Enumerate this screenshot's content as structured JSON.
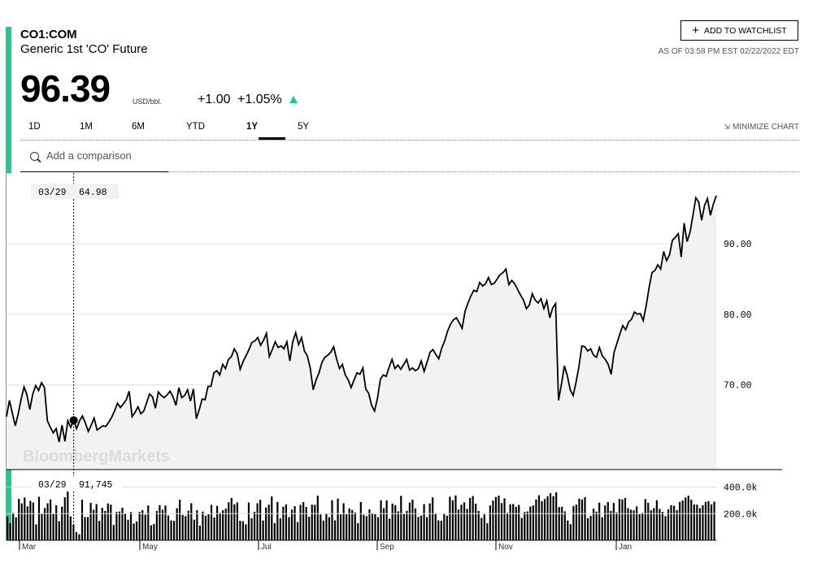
{
  "security": {
    "ticker": "CO1:COM",
    "name": "Generic 1st 'CO' Future",
    "price": "96.39",
    "unit": "USD/bbl.",
    "change": "+1.00",
    "change_pct": "+1.05%",
    "as_of": "AS OF 03:58 PM EST 02/22/2022 EDT"
  },
  "actions": {
    "watchlist_label": "ADD TO WATCHLIST",
    "minimize_label": "MINIMIZE CHART"
  },
  "tabs": [
    {
      "label": "1D"
    },
    {
      "label": "1M"
    },
    {
      "label": "6M"
    },
    {
      "label": "YTD"
    },
    {
      "label": "1Y",
      "active": true
    },
    {
      "label": "5Y"
    }
  ],
  "comparison": {
    "placeholder": "Add a comparison"
  },
  "watermark": "BloombergMarkets",
  "colors": {
    "accent": "#1ecb8c",
    "line": "#000000",
    "area": "#f2f2f2",
    "volume": "#000000"
  },
  "chart_data": [
    {
      "type": "line",
      "title": "",
      "ylabel": "",
      "ylim": [
        58,
        100
      ],
      "yticks": [
        70,
        80,
        90
      ],
      "ytick_labels": [
        "70.00",
        "80.00",
        "90.00"
      ],
      "grid": true,
      "crosshair": {
        "date": "03/29",
        "value": "64.98"
      },
      "x_labels": [
        "Mar",
        "May",
        "Jul",
        "Sep",
        "Nov",
        "Jan"
      ],
      "series": [
        {
          "values": [
            65.5,
            67.8,
            66.0,
            64.2,
            65.9,
            68.0,
            69.7,
            68.6,
            66.5,
            68.7,
            69.9,
            69.2,
            70.3,
            69.6,
            64.9,
            64.0,
            63.2,
            63.8,
            61.9,
            64.3,
            62.0,
            64.9,
            64.0,
            65.0,
            63.8,
            64.9,
            65.6,
            64.6,
            63.4,
            64.3,
            65.3,
            63.6,
            63.9,
            64.2,
            64.1,
            64.7,
            65.4,
            66.3,
            67.4,
            66.8,
            67.3,
            67.9,
            69.1,
            65.5,
            66.1,
            66.9,
            65.9,
            66.3,
            67.5,
            68.7,
            68.3,
            66.7,
            69.0,
            68.5,
            68.2,
            68.6,
            69.1,
            68.3,
            67.1,
            69.6,
            68.2,
            68.5,
            69.3,
            67.7,
            69.4,
            65.2,
            66.5,
            68.0,
            67.9,
            69.8,
            69.8,
            71.7,
            72.0,
            71.4,
            72.9,
            72.3,
            73.6,
            74.0,
            75.1,
            74.4,
            72.2,
            73.3,
            74.1,
            75.0,
            76.0,
            76.2,
            76.7,
            75.6,
            76.3,
            77.3,
            74.0,
            75.0,
            76.1,
            75.3,
            75.5,
            75.1,
            76.1,
            73.4,
            76.1,
            77.4,
            75.7,
            76.7,
            74.8,
            74.1,
            72.4,
            69.3,
            70.7,
            71.7,
            73.2,
            73.9,
            74.2,
            74.6,
            75.4,
            73.7,
            72.3,
            72.9,
            71.4,
            70.7,
            69.6,
            70.7,
            71.7,
            71.5,
            72.4,
            69.4,
            68.8,
            67.1,
            66.3,
            68.1,
            70.8,
            71.4,
            71.2,
            72.5,
            73.6,
            72.3,
            72.8,
            72.2,
            72.9,
            73.6,
            72.1,
            72.4,
            72.0,
            72.3,
            73.4,
            71.9,
            73.2,
            74.6,
            75.0,
            74.3,
            73.7,
            75.2,
            76.2,
            77.6,
            78.6,
            79.2,
            79.5,
            78.8,
            78.0,
            80.4,
            81.6,
            82.6,
            83.4,
            83.2,
            84.5,
            84.0,
            84.3,
            85.2,
            84.2,
            84.4,
            85.0,
            85.6,
            85.9,
            86.4,
            84.2,
            84.8,
            84.3,
            83.5,
            82.7,
            82.0,
            80.8,
            81.3,
            82.9,
            82.0,
            81.6,
            82.2,
            80.8,
            81.9,
            79.5,
            80.9,
            81.5,
            67.8,
            70.1,
            72.7,
            71.3,
            69.3,
            68.5,
            70.4,
            72.6,
            75.5,
            75.4,
            74.8,
            75.1,
            74.2,
            73.9,
            75.3,
            74.1,
            73.6,
            72.9,
            71.5,
            74.6,
            75.9,
            77.2,
            78.4,
            77.8,
            78.9,
            79.3,
            80.3,
            80.0,
            80.1,
            79.1,
            81.2,
            83.8,
            85.9,
            86.2,
            87.0,
            86.4,
            88.9,
            87.6,
            88.4,
            90.5,
            90.9,
            91.4,
            88.1,
            92.9,
            90.3,
            91.6,
            94.0,
            96.5,
            95.9,
            93.3,
            95.4,
            96.4,
            94.0,
            95.6,
            96.8
          ]
        }
      ]
    },
    {
      "type": "bar",
      "title": "",
      "ylim": [
        0,
        520000
      ],
      "yticks": [
        200000,
        400000
      ],
      "ytick_labels": [
        "200.0k",
        "400.0k"
      ],
      "crosshair": {
        "date": "03/29",
        "value": "91,745"
      },
      "series": [
        {
          "values": [
            180000,
            129000,
            207000,
            173000,
            312000,
            278000,
            322000,
            255000,
            296000,
            284000,
            119000,
            327000,
            202000,
            242000,
            279000,
            307000,
            198000,
            263000,
            143000,
            253000,
            323000,
            368000,
            180000,
            118000,
            62000,
            45000,
            305000,
            175000,
            175000,
            282000,
            229000,
            272000,
            146000,
            245000,
            221000,
            277000,
            268000,
            115000,
            213000,
            216000,
            245000,
            201000,
            154000,
            212000,
            126000,
            142000,
            213000,
            227000,
            192000,
            262000,
            113000,
            122000,
            220000,
            265000,
            230000,
            261000,
            186000,
            149000,
            147000,
            241000,
            305000,
            191000,
            182000,
            222000,
            279000,
            155000,
            226000,
            111000,
            216000,
            185000,
            195000,
            267000,
            171000,
            259000,
            207000,
            225000,
            239000,
            286000,
            319000,
            271000,
            285000,
            147000,
            144000,
            120000,
            284000,
            166000,
            215000,
            279000,
            304000,
            148000,
            246000,
            268000,
            330000,
            130000,
            288000,
            164000,
            253000,
            270000,
            174000,
            230000,
            257000,
            137000,
            267000,
            287000,
            251000,
            177000,
            268000,
            267000,
            335000,
            194000,
            148000,
            198000,
            174000,
            301000,
            150000,
            313000,
            194000,
            279000,
            195000,
            240000,
            228000,
            210000,
            129000,
            288000,
            192000,
            182000,
            232000,
            204000,
            197000,
            174000,
            301000,
            241000,
            300000,
            163000,
            276000,
            265000,
            218000,
            334000,
            197000,
            221000,
            283000,
            306000,
            240000,
            176000,
            186000,
            272000,
            174000,
            278000,
            323000,
            203000,
            150000,
            147000,
            201000,
            185000,
            328000,
            301000,
            338000,
            231000,
            268000,
            285000,
            236000,
            319000,
            333000,
            276000,
            221000,
            168000,
            195000,
            128000,
            262000,
            299000,
            326000,
            336000,
            280000,
            315000,
            206000,
            271000,
            273000,
            252000,
            266000,
            168000,
            213000,
            217000,
            254000,
            262000,
            307000,
            339000,
            295000,
            311000,
            331000,
            355000,
            332000,
            361000,
            250000,
            252000,
            218000,
            149000,
            121000,
            258000,
            268000,
            313000,
            307000,
            324000,
            166000,
            184000,
            238000,
            216000,
            283000,
            173000,
            262000,
            288000,
            221000,
            281000,
            209000,
            312000,
            307000,
            319000,
            241000,
            230000,
            225000,
            255000,
            196000,
            207000,
            310000,
            282000,
            226000,
            242000,
            301000,
            236000,
            214000,
            182000,
            234000,
            264000,
            260000,
            227000,
            289000,
            299000,
            322000,
            335000,
            305000,
            270000,
            268000,
            242000,
            263000,
            289000,
            295000,
            270000,
            290000
          ]
        }
      ]
    }
  ]
}
